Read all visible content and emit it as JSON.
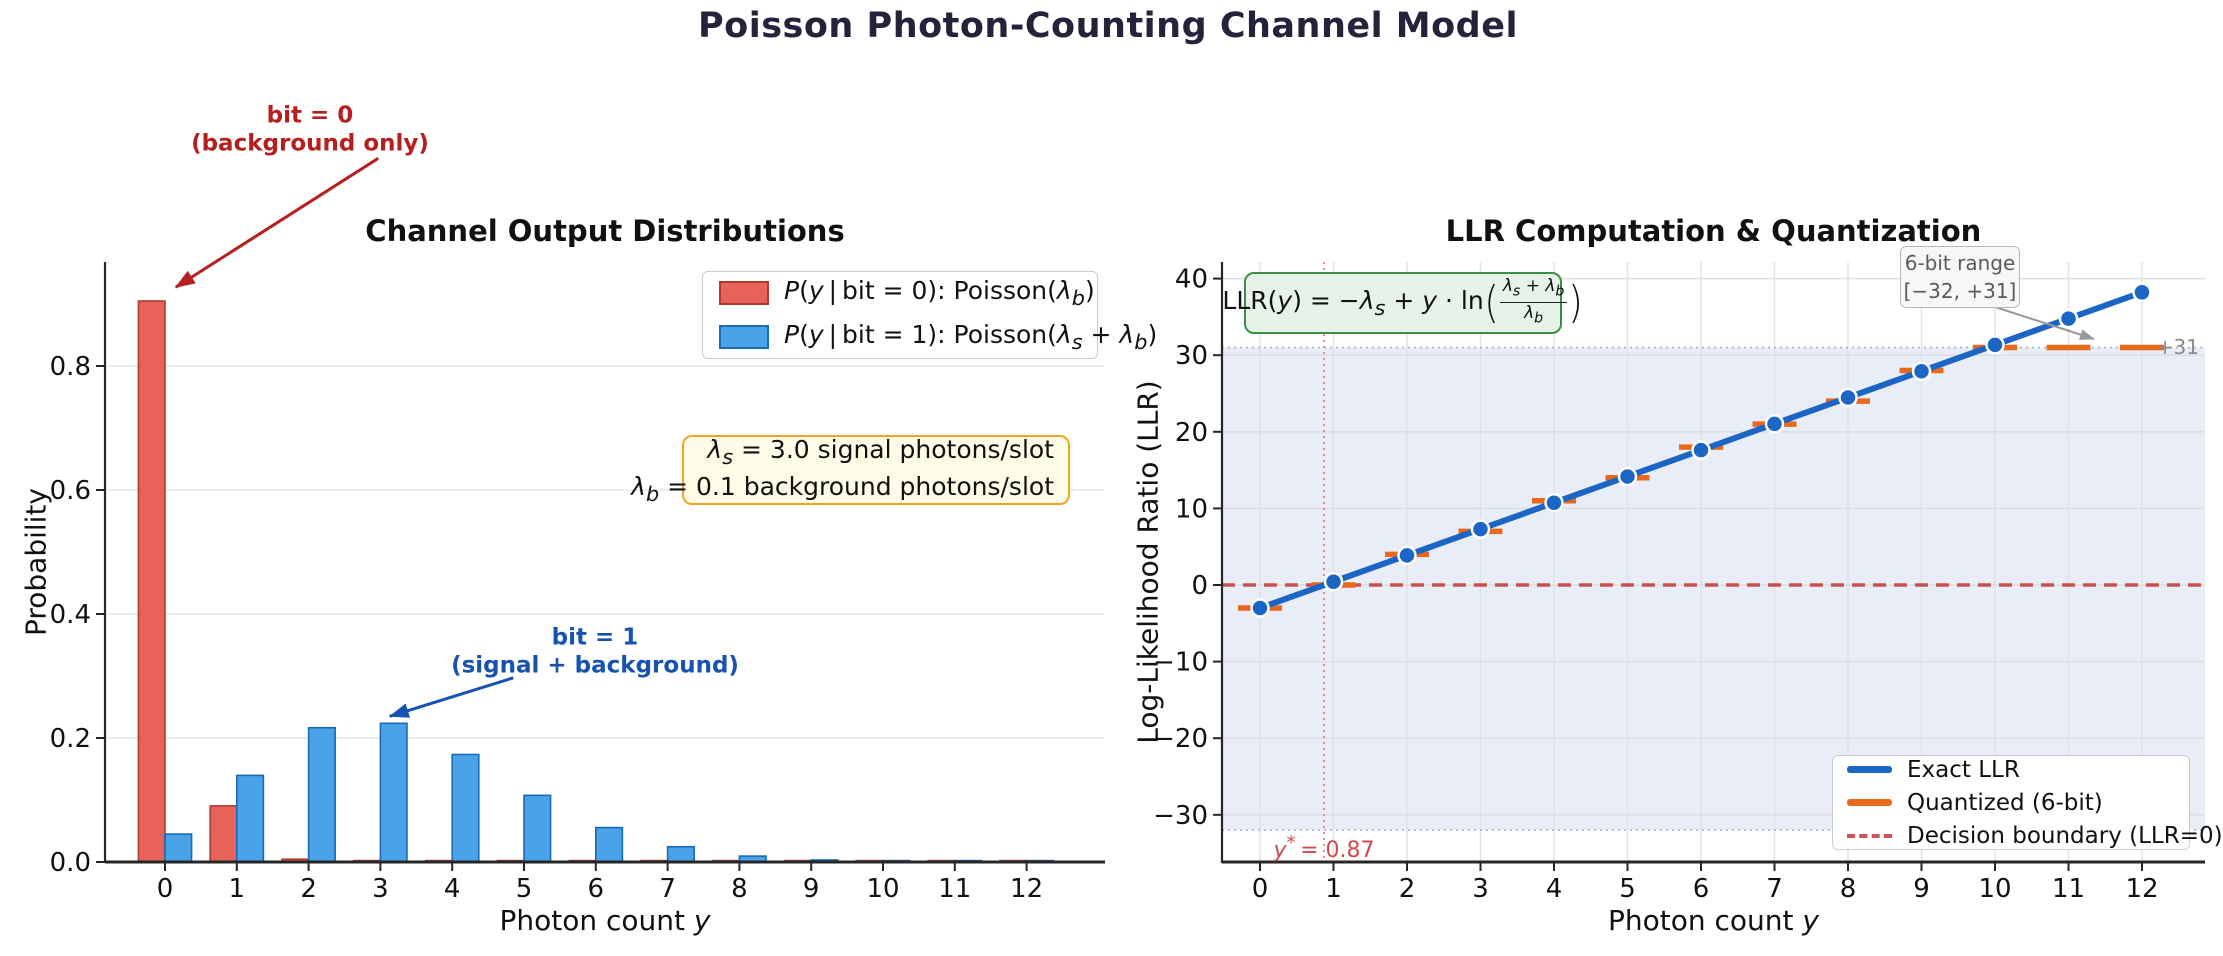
{
  "title": "Poisson Photon-Counting Channel Model",
  "chart_data": [
    {
      "id": "channel-output-distributions",
      "type": "bar",
      "title": "Channel Output Distributions",
      "xlabel": "Photon count y",
      "xlabel_rich": "Photon count <i>y</i>",
      "ylabel": "Probability",
      "categories": [
        0,
        1,
        2,
        3,
        4,
        5,
        6,
        7,
        8,
        9,
        10,
        11,
        12
      ],
      "series": [
        {
          "name": "P(y | bit = 0): Poisson(λb)",
          "label_rich": "<i>P</i>(<i>y</i> | bit = 0): Poisson(<i>λ<sub>b</sub></i>)",
          "color": "#e8625c",
          "edge": "#b03a30",
          "values": [
            0.9048,
            0.0905,
            0.0045,
            0.0002,
            0,
            0,
            0,
            0,
            0,
            0,
            0,
            0,
            0
          ]
        },
        {
          "name": "P(y | bit = 1): Poisson(λs + λb)",
          "label_rich": "<i>P</i>(<i>y</i> | bit = 1): Poisson(<i>λ<sub>s</sub></i> + <i>λ<sub>b</sub></i>)",
          "color": "#4aa2e8",
          "edge": "#1a6ab8",
          "values": [
            0.045,
            0.1397,
            0.2165,
            0.2237,
            0.1734,
            0.1075,
            0.0555,
            0.0246,
            0.0095,
            0.0033,
            0.001,
            0.0003,
            0.0001
          ]
        }
      ],
      "ylim": [
        0,
        0.968
      ],
      "yticks": [
        0,
        0.2,
        0.4,
        0.6,
        0.8
      ],
      "ytick_labels": [
        "0.0",
        "0.2",
        "0.4",
        "0.6",
        "0.8"
      ],
      "grid": "horizontal",
      "legend_position": "upper right",
      "param_box": {
        "line1": "λs = 3.0 signal photons/slot",
        "line1_rich": "<i>λ<sub>s</sub></i> = 3.0 signal photons/slot",
        "line2": "λb = 0.1 background photons/slot",
        "line2_rich": "<i>λ<sub>b</sub></i> = 0.1 background photons/slot"
      },
      "annotations": [
        {
          "id": "bit0",
          "line1": "bit = 0",
          "line2": "(background only)",
          "color": "#b71f1f",
          "arrow": {
            "from": [
              2.97,
              1.135
            ],
            "to": [
              0.15,
              0.927
            ]
          }
        },
        {
          "id": "bit1",
          "line1": "bit = 1",
          "line2": "(signal + background)",
          "color": "#1752b0",
          "arrow": {
            "from": [
              4.85,
              0.297
            ],
            "to": [
              3.13,
              0.235
            ]
          }
        }
      ]
    },
    {
      "id": "llr-computation-quantization",
      "type": "line",
      "title": "LLR Computation & Quantization",
      "xlabel": "Photon count y",
      "xlabel_rich": "Photon count <i>y</i>",
      "ylabel": "Log-Likelihood Ratio (LLR)",
      "x": [
        0,
        1,
        2,
        3,
        4,
        5,
        6,
        7,
        8,
        9,
        10,
        11,
        12
      ],
      "series": [
        {
          "name": "Exact LLR",
          "style": "line+markers",
          "color": "#1b66c4",
          "values": [
            -3.0,
            0.43,
            3.87,
            7.3,
            10.74,
            14.17,
            17.6,
            21.04,
            24.47,
            27.91,
            31.34,
            34.78,
            38.21
          ]
        },
        {
          "name": "Quantized (6-bit)",
          "style": "horizontal-dashes",
          "color": "#e8681c",
          "values": [
            -3,
            0,
            4,
            7,
            11,
            14,
            18,
            21,
            24,
            28,
            31,
            31,
            31
          ]
        },
        {
          "name": "Decision boundary (LLR=0)",
          "style": "dashed-hline",
          "color": "#c9504e",
          "y": 0
        }
      ],
      "band": {
        "from": -32,
        "to": 31,
        "fill": "#e9edf7",
        "edge_color": "#a6aec0"
      },
      "vline": {
        "x": 0.87,
        "color": "#e88a8a",
        "label": "y* = 0.87",
        "label_rich": "<i>y</i><sup>*</sup> = 0.87",
        "label_color": "#d14a4a"
      },
      "formula_box": {
        "formula": "LLR(y) = −λs + y · ln((λs + λb)/λb)",
        "prefix_rich": "LLR(<i>y</i>) = −<i>λ<sub>s</sub></i> + <i>y</i> · ln",
        "numerator_rich": "<i>λ<sub>s</sub></i> + <i>λ<sub>b</sub></i>",
        "denominator_rich": "<i>λ<sub>b</sub></i>"
      },
      "range_box": {
        "line1": "6-bit range",
        "line2": "[−32, +31]",
        "clamp_label": "+31"
      },
      "ylim": [
        -36.2,
        42.2
      ],
      "yticks": [
        -30,
        -20,
        -10,
        0,
        10,
        20,
        30,
        40
      ],
      "ytick_labels": [
        "−30",
        "−20",
        "−10",
        "0",
        "10",
        "20",
        "30",
        "40"
      ],
      "grid": "both",
      "legend_position": "lower right"
    }
  ]
}
